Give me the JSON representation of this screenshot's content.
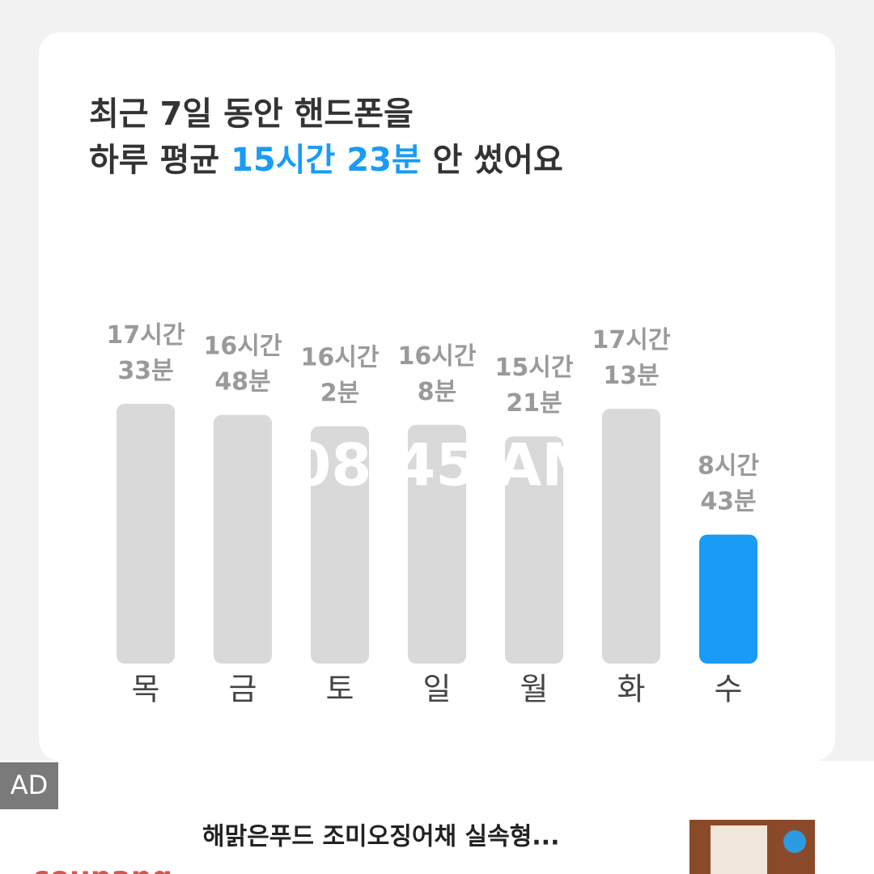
{
  "chart_data": {
    "type": "bar",
    "title_line1": "최근 7일 동안 핸드폰을",
    "title_line2": [
      "하루 평균 ",
      "15시간 23분",
      " 안 썼어요"
    ],
    "categories": [
      "목",
      "금",
      "토",
      "일",
      "월",
      "화",
      "수"
    ],
    "values": [
      1053,
      1008,
      962,
      968,
      921,
      1033,
      523
    ],
    "value_labels": [
      "17시간 33분",
      "16시간 48분",
      "16시간 2분",
      "16시간 8분",
      "15시간 21분",
      "17시간 13분",
      "8시간 43분"
    ],
    "colors": [
      "#d9d9d9",
      "#d9d9d9",
      "#d9d9d9",
      "#d9d9d9",
      "#d9d9d9",
      "#d9d9d9",
      "#1a9bf5"
    ],
    "overlay": "08:45 AM"
  },
  "ad": {
    "badge": "AD",
    "title": "해맑은푸드 조미오징어채 실속형...",
    "brand": "coupang"
  }
}
